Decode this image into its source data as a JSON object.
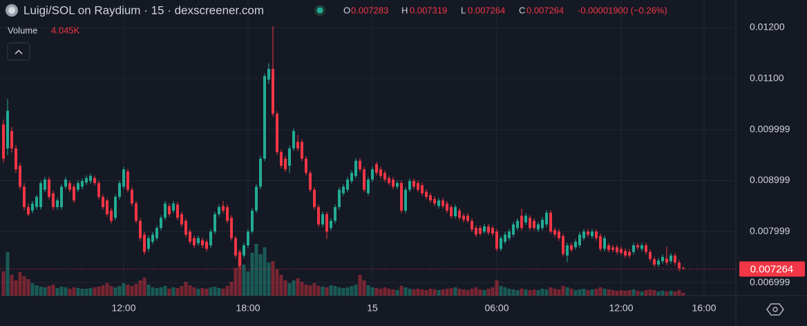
{
  "header": {
    "title": "Luigi/SOL on Raydium · 15 · dexscreener.com",
    "ohlc": [
      {
        "key": "O",
        "value": "0.007283"
      },
      {
        "key": "H",
        "value": "0.007319"
      },
      {
        "key": "L",
        "value": "0.007264"
      },
      {
        "key": "C",
        "value": "0.007264"
      }
    ],
    "change": "-0.00001900 (−0.26%)",
    "volume_label": "Volume",
    "volume_value": "4.045K"
  },
  "chart_data": {
    "type": "candlestick",
    "up_color": "#22ab94",
    "down_color": "#f23645",
    "grid": true,
    "price_tag": "0.007264",
    "ylim": [
      0.006743,
      0.012542
    ],
    "yticks": [
      {
        "value": 0.012,
        "label": "0.01200"
      },
      {
        "value": 0.011,
        "label": "0.01100"
      },
      0.009999,
      0.008999,
      0.007999,
      0.006999
    ],
    "categories": [
      null,
      null,
      null,
      null,
      null,
      null,
      null,
      null,
      null,
      null,
      null,
      null,
      null,
      null,
      null,
      null,
      null,
      null,
      null,
      null,
      null,
      null,
      null,
      null,
      null,
      null,
      null,
      null,
      null,
      "12:00",
      null,
      null,
      null,
      null,
      null,
      null,
      null,
      null,
      null,
      null,
      null,
      null,
      null,
      null,
      null,
      null,
      null,
      null,
      null,
      null,
      null,
      null,
      null,
      null,
      null,
      null,
      null,
      null,
      null,
      "18:00",
      null,
      null,
      null,
      null,
      null,
      null,
      null,
      null,
      null,
      null,
      null,
      null,
      null,
      null,
      null,
      null,
      null,
      null,
      null,
      null,
      null,
      null,
      null,
      null,
      null,
      null,
      null,
      null,
      null,
      "15",
      null,
      null,
      null,
      null,
      null,
      null,
      null,
      null,
      null,
      null,
      null,
      null,
      null,
      null,
      null,
      null,
      null,
      null,
      null,
      null,
      null,
      null,
      null,
      null,
      null,
      null,
      null,
      null,
      null,
      "06:00",
      null,
      null,
      null,
      null,
      null,
      null,
      null,
      null,
      null,
      null,
      null,
      null,
      null,
      null,
      null,
      null,
      null,
      null,
      null,
      null,
      null,
      null,
      null,
      null,
      null,
      null,
      null,
      null,
      null,
      "12:00",
      null,
      null,
      null,
      null,
      null,
      null,
      null,
      null,
      null,
      null,
      null,
      null,
      null,
      null,
      null,
      null,
      null,
      null,
      null,
      "16:00"
    ],
    "ohlc": [
      [
        0.0101,
        0.0102,
        0.00935,
        0.00943
      ],
      [
        0.00963,
        0.0106,
        0.0095,
        0.01037
      ],
      [
        0.00997,
        0.01005,
        0.00955,
        0.00963
      ],
      [
        0.00963,
        0.0097,
        0.00915,
        0.00922
      ],
      [
        0.00929,
        0.00935,
        0.00882,
        0.00888
      ],
      [
        0.00888,
        0.00895,
        0.00842,
        0.00848
      ],
      [
        0.00848,
        0.00855,
        0.0083,
        0.00834
      ],
      [
        0.00841,
        0.0086,
        0.00836,
        0.00855
      ],
      [
        0.00848,
        0.00872,
        0.00843,
        0.00868
      ],
      [
        0.00848,
        0.009,
        0.00843,
        0.00895
      ],
      [
        0.00882,
        0.00907,
        0.00877,
        0.00902
      ],
      [
        0.00902,
        0.00907,
        0.00863,
        0.00868
      ],
      [
        0.00875,
        0.0088,
        0.00842,
        0.00848
      ],
      [
        0.00848,
        0.00866,
        0.00843,
        0.00861
      ],
      [
        0.00848,
        0.00893,
        0.00843,
        0.00888
      ],
      [
        0.00888,
        0.00907,
        0.00883,
        0.00902
      ],
      [
        0.00895,
        0.009,
        0.00877,
        0.00882
      ],
      [
        0.00888,
        0.00893,
        0.00856,
        0.00861
      ],
      [
        0.00882,
        0.009,
        0.00877,
        0.00895
      ],
      [
        0.00888,
        0.00904,
        0.00883,
        0.00899
      ],
      [
        0.00896,
        0.0091,
        0.00891,
        0.00905
      ],
      [
        0.00899,
        0.00914,
        0.00894,
        0.00909
      ],
      [
        0.00905,
        0.0091,
        0.0089,
        0.00895
      ],
      [
        0.00895,
        0.009,
        0.00863,
        0.00868
      ],
      [
        0.00868,
        0.00873,
        0.00843,
        0.00848
      ],
      [
        0.00861,
        0.00866,
        0.00829,
        0.00834
      ],
      [
        0.00841,
        0.00846,
        0.00816,
        0.00821
      ],
      [
        0.00827,
        0.00873,
        0.00822,
        0.00868
      ],
      [
        0.00868,
        0.009,
        0.00863,
        0.00895
      ],
      [
        0.00888,
        0.00927,
        0.00883,
        0.00922
      ],
      [
        0.00918,
        0.00923,
        0.00877,
        0.00882
      ],
      [
        0.00882,
        0.00887,
        0.0085,
        0.00855
      ],
      [
        0.00855,
        0.0086,
        0.00816,
        0.00821
      ],
      [
        0.00821,
        0.00826,
        0.00782,
        0.00787
      ],
      [
        0.00794,
        0.00799,
        0.00755,
        0.0076
      ],
      [
        0.00766,
        0.00792,
        0.00761,
        0.00787
      ],
      [
        0.0078,
        0.00799,
        0.00775,
        0.00794
      ],
      [
        0.00787,
        0.00812,
        0.00782,
        0.00807
      ],
      [
        0.00807,
        0.00832,
        0.00802,
        0.00827
      ],
      [
        0.00827,
        0.0086,
        0.00822,
        0.00855
      ],
      [
        0.0085,
        0.00855,
        0.00829,
        0.00834
      ],
      [
        0.00841,
        0.0086,
        0.00836,
        0.00855
      ],
      [
        0.00853,
        0.00858,
        0.00822,
        0.00827
      ],
      [
        0.00834,
        0.00839,
        0.00809,
        0.00814
      ],
      [
        0.00821,
        0.00826,
        0.00789,
        0.00794
      ],
      [
        0.008,
        0.00805,
        0.00775,
        0.0078
      ],
      [
        0.00787,
        0.00792,
        0.00768,
        0.00773
      ],
      [
        0.00777,
        0.00792,
        0.00772,
        0.00787
      ],
      [
        0.00783,
        0.00788,
        0.00768,
        0.00773
      ],
      [
        0.0078,
        0.00785,
        0.00761,
        0.00766
      ],
      [
        0.00773,
        0.00805,
        0.00768,
        0.008
      ],
      [
        0.008,
        0.00839,
        0.00795,
        0.00834
      ],
      [
        0.00834,
        0.00853,
        0.00829,
        0.00848
      ],
      [
        0.0085,
        0.0086,
        0.00836,
        0.00841
      ],
      [
        0.00848,
        0.00853,
        0.00816,
        0.00821
      ],
      [
        0.00827,
        0.00832,
        0.00782,
        0.00787
      ],
      [
        0.00787,
        0.00792,
        0.00748,
        0.00753
      ],
      [
        0.0076,
        0.00765,
        0.00728,
        0.00733
      ],
      [
        0.00753,
        0.00778,
        0.00748,
        0.00773
      ],
      [
        0.00773,
        0.00805,
        0.00768,
        0.008
      ],
      [
        0.008,
        0.00846,
        0.00795,
        0.00841
      ],
      [
        0.00841,
        0.00893,
        0.00836,
        0.00888
      ],
      [
        0.00888,
        0.00948,
        0.00883,
        0.00943
      ],
      [
        0.00943,
        0.0111,
        0.00938,
        0.01105
      ],
      [
        0.01098,
        0.0113,
        0.0109,
        0.01119
      ],
      [
        0.01119,
        0.01203,
        0.01025,
        0.01031
      ],
      [
        0.01031,
        0.01036,
        0.0095,
        0.00956
      ],
      [
        0.00956,
        0.00961,
        0.00924,
        0.00929
      ],
      [
        0.00943,
        0.00948,
        0.00917,
        0.00922
      ],
      [
        0.00929,
        0.00968,
        0.00915,
        0.00963
      ],
      [
        0.00963,
        0.01002,
        0.00958,
        0.00997
      ],
      [
        0.00976,
        0.0099,
        0.00958,
        0.00963
      ],
      [
        0.00976,
        0.00981,
        0.00938,
        0.00943
      ],
      [
        0.00943,
        0.00948,
        0.0091,
        0.00915
      ],
      [
        0.00915,
        0.0092,
        0.00877,
        0.00882
      ],
      [
        0.00882,
        0.00887,
        0.00843,
        0.00848
      ],
      [
        0.00848,
        0.00853,
        0.00809,
        0.00814
      ],
      [
        0.00814,
        0.00839,
        0.00809,
        0.00834
      ],
      [
        0.00834,
        0.00839,
        0.00785,
        0.008
      ],
      [
        0.00807,
        0.00826,
        0.00802,
        0.00821
      ],
      [
        0.00821,
        0.00853,
        0.00816,
        0.00848
      ],
      [
        0.00848,
        0.00887,
        0.00843,
        0.00882
      ],
      [
        0.00875,
        0.00893,
        0.0087,
        0.00888
      ],
      [
        0.00882,
        0.00907,
        0.00877,
        0.00902
      ],
      [
        0.00899,
        0.0092,
        0.00894,
        0.00915
      ],
      [
        0.00909,
        0.00944,
        0.00904,
        0.00939
      ],
      [
        0.00939,
        0.00944,
        0.00917,
        0.00922
      ],
      [
        0.00922,
        0.00927,
        0.00877,
        0.00882
      ],
      [
        0.00875,
        0.00907,
        0.0087,
        0.00902
      ],
      [
        0.00902,
        0.00927,
        0.00897,
        0.00922
      ],
      [
        0.00932,
        0.00937,
        0.0091,
        0.00915
      ],
      [
        0.00922,
        0.00927,
        0.00904,
        0.00909
      ],
      [
        0.00915,
        0.0092,
        0.00897,
        0.00902
      ],
      [
        0.00905,
        0.0091,
        0.0089,
        0.00895
      ],
      [
        0.00902,
        0.00907,
        0.00883,
        0.00888
      ],
      [
        0.00888,
        0.009,
        0.00883,
        0.00895
      ],
      [
        0.00895,
        0.009,
        0.00836,
        0.00841
      ],
      [
        0.00841,
        0.00887,
        0.00836,
        0.00882
      ],
      [
        0.00882,
        0.00904,
        0.00877,
        0.00899
      ],
      [
        0.00899,
        0.00904,
        0.00883,
        0.00888
      ],
      [
        0.00895,
        0.009,
        0.00877,
        0.00882
      ],
      [
        0.00891,
        0.00896,
        0.0087,
        0.00875
      ],
      [
        0.00878,
        0.00883,
        0.00863,
        0.00868
      ],
      [
        0.00871,
        0.00876,
        0.00856,
        0.00861
      ],
      [
        0.00864,
        0.00869,
        0.0085,
        0.00855
      ],
      [
        0.0085,
        0.00866,
        0.00845,
        0.00861
      ],
      [
        0.00861,
        0.00866,
        0.00845,
        0.0085
      ],
      [
        0.00855,
        0.0086,
        0.00836,
        0.00841
      ],
      [
        0.00848,
        0.00853,
        0.00825,
        0.0083
      ],
      [
        0.0083,
        0.00853,
        0.00825,
        0.00848
      ],
      [
        0.00841,
        0.00846,
        0.00822,
        0.00827
      ],
      [
        0.00831,
        0.00836,
        0.00818,
        0.00823
      ],
      [
        0.00831,
        0.00836,
        0.00816,
        0.00821
      ],
      [
        0.00821,
        0.00826,
        0.00799,
        0.00804
      ],
      [
        0.00807,
        0.00812,
        0.00789,
        0.00794
      ],
      [
        0.00807,
        0.00812,
        0.00791,
        0.00796
      ],
      [
        0.008,
        0.00815,
        0.00795,
        0.0081
      ],
      [
        0.0081,
        0.00815,
        0.00793,
        0.00798
      ],
      [
        0.00807,
        0.00812,
        0.00791,
        0.00796
      ],
      [
        0.008,
        0.00805,
        0.00761,
        0.00766
      ],
      [
        0.00766,
        0.00792,
        0.00761,
        0.00787
      ],
      [
        0.0078,
        0.00799,
        0.00775,
        0.00794
      ],
      [
        0.00787,
        0.00805,
        0.00782,
        0.008
      ],
      [
        0.00794,
        0.00819,
        0.00789,
        0.00814
      ],
      [
        0.00807,
        0.00826,
        0.00802,
        0.00821
      ],
      [
        0.00831,
        0.00845,
        0.00802,
        0.00807
      ],
      [
        0.00818,
        0.00836,
        0.00813,
        0.00831
      ],
      [
        0.00827,
        0.00832,
        0.00802,
        0.00807
      ],
      [
        0.00821,
        0.00826,
        0.00802,
        0.00807
      ],
      [
        0.00804,
        0.00819,
        0.00799,
        0.00814
      ],
      [
        0.00807,
        0.00828,
        0.00802,
        0.00823
      ],
      [
        0.00814,
        0.00842,
        0.00809,
        0.00837
      ],
      [
        0.00837,
        0.00842,
        0.00795,
        0.008
      ],
      [
        0.00803,
        0.00808,
        0.00789,
        0.00794
      ],
      [
        0.008,
        0.00805,
        0.00782,
        0.00787
      ],
      [
        0.00791,
        0.00796,
        0.00751,
        0.00756
      ],
      [
        0.00753,
        0.00778,
        0.0074,
        0.00773
      ],
      [
        0.00773,
        0.00778,
        0.00759,
        0.00764
      ],
      [
        0.00769,
        0.00785,
        0.00764,
        0.0078
      ],
      [
        0.00773,
        0.00799,
        0.00768,
        0.00794
      ],
      [
        0.00787,
        0.00805,
        0.00782,
        0.008
      ],
      [
        0.008,
        0.00805,
        0.00789,
        0.00794
      ],
      [
        0.00791,
        0.00805,
        0.00786,
        0.008
      ],
      [
        0.008,
        0.00805,
        0.00782,
        0.00787
      ],
      [
        0.00791,
        0.00796,
        0.00761,
        0.00766
      ],
      [
        0.00766,
        0.00792,
        0.00761,
        0.00787
      ],
      [
        0.00773,
        0.00778,
        0.00759,
        0.00764
      ],
      [
        0.00769,
        0.00774,
        0.00759,
        0.00764
      ],
      [
        0.00769,
        0.00774,
        0.00755,
        0.0076
      ],
      [
        0.00766,
        0.00771,
        0.00753,
        0.00758
      ],
      [
        0.00762,
        0.00767,
        0.00748,
        0.00753
      ],
      [
        0.0076,
        0.00765,
        0.00748,
        0.00753
      ],
      [
        0.0076,
        0.00778,
        0.00755,
        0.00773
      ],
      [
        0.00773,
        0.00778,
        0.00764,
        0.00769
      ],
      [
        0.00766,
        0.00778,
        0.00761,
        0.00773
      ],
      [
        0.00773,
        0.00778,
        0.00755,
        0.0076
      ],
      [
        0.0076,
        0.00765,
        0.00741,
        0.00746
      ],
      [
        0.00746,
        0.00751,
        0.0073,
        0.00735
      ],
      [
        0.00735,
        0.00748,
        0.0073,
        0.00743
      ],
      [
        0.00742,
        0.00755,
        0.00737,
        0.0075
      ],
      [
        0.00747,
        0.0077,
        0.00734,
        0.00739
      ],
      [
        0.00742,
        0.00758,
        0.00737,
        0.00753
      ],
      [
        0.00753,
        0.00758,
        0.00734,
        0.00739
      ],
      [
        0.00739,
        0.00744,
        0.00722,
        0.00728
      ],
      [
        0.007283,
        0.007319,
        0.007264,
        0.007264
      ],
      null,
      null,
      null,
      null,
      null
    ],
    "volume": [
      35000,
      63000,
      30000,
      22000,
      34000,
      28000,
      24000,
      18000,
      15000,
      13000,
      12000,
      14000,
      16000,
      11000,
      13000,
      12000,
      10000,
      12000,
      11000,
      10000,
      10000,
      11000,
      12000,
      13000,
      15000,
      18000,
      14000,
      12000,
      14000,
      18000,
      16000,
      14000,
      17000,
      22000,
      26000,
      16000,
      12000,
      11000,
      12000,
      14000,
      10000,
      12000,
      11000,
      14000,
      20000,
      15000,
      12000,
      10000,
      11000,
      10000,
      12000,
      13000,
      11000,
      10000,
      14000,
      20000,
      40000,
      55000,
      45000,
      35000,
      62000,
      75000,
      60000,
      70000,
      48000,
      50000,
      38000,
      30000,
      22000,
      18000,
      22000,
      25000,
      20000,
      16000,
      15000,
      18000,
      14000,
      13000,
      12000,
      15000,
      14000,
      12000,
      11000,
      12000,
      14000,
      16000,
      30000,
      22000,
      15000,
      12000,
      11000,
      10000,
      12000,
      10000,
      9000,
      8000,
      14000,
      12000,
      10000,
      9000,
      10000,
      9000,
      8000,
      10000,
      9000,
      8000,
      9000,
      10000,
      11000,
      12000,
      10000,
      9000,
      8000,
      10000,
      12000,
      9000,
      8000,
      10000,
      12000,
      22000,
      14000,
      12000,
      10000,
      9000,
      8000,
      10000,
      9000,
      8000,
      9000,
      8000,
      10000,
      9000,
      12000,
      10000,
      9000,
      14000,
      12000,
      10000,
      8000,
      9000,
      10000,
      8000,
      9000,
      10000,
      12000,
      10000,
      9000,
      8000,
      7000,
      8000,
      7000,
      8000,
      9000,
      7000,
      6000,
      8000,
      9000,
      8000,
      6000,
      7000,
      6000,
      7000,
      6000,
      8000,
      4045,
      null,
      null,
      null,
      null,
      null
    ]
  }
}
